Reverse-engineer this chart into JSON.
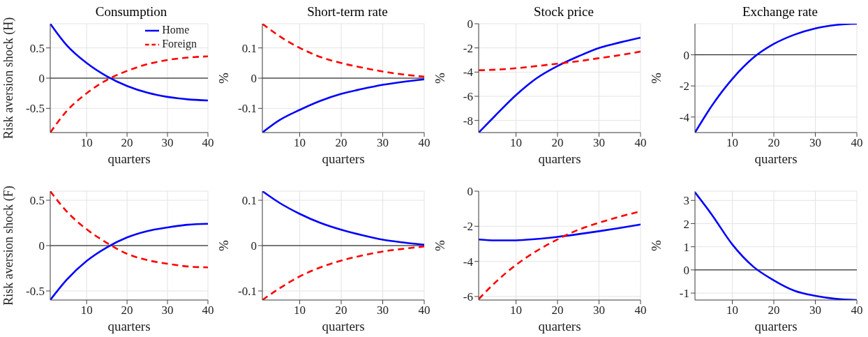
{
  "chart_data": [
    {
      "type": "line",
      "title": "Consumption",
      "xlabel": "quarters",
      "ylabel": "Risk aversion shock (H)",
      "x": [
        1,
        5,
        10,
        15,
        20,
        25,
        30,
        35,
        40
      ],
      "xlim": [
        1,
        40
      ],
      "xticks": [
        10,
        20,
        30,
        40
      ],
      "ylim": [
        -0.9,
        0.9
      ],
      "yticks": [
        -0.5,
        0,
        0.5
      ],
      "grid": true,
      "legend": "top right",
      "ref_lines": [
        {
          "axis": "y",
          "value": 0,
          "color": "#000000"
        }
      ],
      "series": [
        {
          "name": "Home",
          "color": "#0000ff",
          "line_style": "solid",
          "values": [
            0.9,
            0.55,
            0.25,
            0.03,
            -0.13,
            -0.24,
            -0.31,
            -0.35,
            -0.37
          ]
        },
        {
          "name": "Foreign",
          "color": "#ff0000",
          "line_style": "dashed",
          "values": [
            -0.9,
            -0.55,
            -0.25,
            -0.03,
            0.12,
            0.23,
            0.3,
            0.34,
            0.36
          ]
        }
      ]
    },
    {
      "type": "line",
      "title": "Short-term rate",
      "xlabel": "quarters",
      "ylabel": "%",
      "x": [
        1,
        5,
        10,
        15,
        20,
        25,
        30,
        35,
        40
      ],
      "xlim": [
        1,
        40
      ],
      "xticks": [
        10,
        20,
        30,
        40
      ],
      "ylim": [
        -0.18,
        0.18
      ],
      "yticks": [
        -0.1,
        0,
        0.1
      ],
      "grid": true,
      "ref_lines": [
        {
          "axis": "y",
          "value": 0,
          "color": "#000000"
        }
      ],
      "series": [
        {
          "color": "#0000ff",
          "line_style": "solid",
          "values": [
            -0.18,
            -0.14,
            -0.105,
            -0.075,
            -0.052,
            -0.036,
            -0.022,
            -0.012,
            -0.004
          ]
        },
        {
          "color": "#ff0000",
          "line_style": "dashed",
          "values": [
            0.18,
            0.14,
            0.1,
            0.07,
            0.05,
            0.035,
            0.022,
            0.012,
            0.005
          ]
        }
      ]
    },
    {
      "type": "line",
      "title": "Stock price",
      "xlabel": "quarters",
      "ylabel": "%",
      "x": [
        1,
        5,
        10,
        15,
        20,
        25,
        30,
        35,
        40
      ],
      "xlim": [
        1,
        40
      ],
      "xticks": [
        10,
        20,
        30,
        40
      ],
      "ylim": [
        -9,
        0
      ],
      "yticks": [
        -8,
        -6,
        -4,
        -2,
        0
      ],
      "grid": true,
      "series": [
        {
          "color": "#0000ff",
          "line_style": "solid",
          "values": [
            -9,
            -7.6,
            -5.9,
            -4.5,
            -3.5,
            -2.7,
            -2.0,
            -1.55,
            -1.15
          ]
        },
        {
          "color": "#ff0000",
          "line_style": "dashed",
          "values": [
            -3.85,
            -3.8,
            -3.68,
            -3.5,
            -3.3,
            -3.1,
            -2.85,
            -2.6,
            -2.3
          ]
        }
      ]
    },
    {
      "type": "line",
      "title": "Exchange rate",
      "xlabel": "quarters",
      "ylabel": "%",
      "x": [
        1,
        5,
        10,
        15,
        20,
        25,
        30,
        35,
        40
      ],
      "xlim": [
        1,
        40
      ],
      "xticks": [
        10,
        20,
        30,
        40
      ],
      "ylim": [
        -5,
        2
      ],
      "yticks": [
        -4,
        -2,
        0
      ],
      "grid": true,
      "ref_lines": [
        {
          "axis": "y",
          "value": 0,
          "color": "#000000"
        }
      ],
      "series": [
        {
          "color": "#0000ff",
          "line_style": "solid",
          "values": [
            -5,
            -3.3,
            -1.55,
            -0.2,
            0.7,
            1.3,
            1.7,
            1.92,
            2.0
          ]
        }
      ]
    },
    {
      "type": "line",
      "xlabel": "quarters",
      "ylabel": "Risk aversion shock (F)",
      "x": [
        1,
        5,
        10,
        15,
        20,
        25,
        30,
        35,
        40
      ],
      "xlim": [
        1,
        40
      ],
      "xticks": [
        10,
        20,
        30,
        40
      ],
      "ylim": [
        -0.6,
        0.6
      ],
      "yticks": [
        -0.5,
        0,
        0.5
      ],
      "grid": true,
      "ref_lines": [
        {
          "axis": "y",
          "value": 0,
          "color": "#000000"
        }
      ],
      "series": [
        {
          "color": "#0000ff",
          "line_style": "solid",
          "values": [
            -0.6,
            -0.38,
            -0.17,
            -0.02,
            0.09,
            0.16,
            0.2,
            0.23,
            0.24
          ]
        },
        {
          "color": "#ff0000",
          "line_style": "dashed",
          "values": [
            0.6,
            0.38,
            0.18,
            0.03,
            -0.09,
            -0.16,
            -0.2,
            -0.23,
            -0.24
          ]
        }
      ]
    },
    {
      "type": "line",
      "xlabel": "quarters",
      "ylabel": "%",
      "x": [
        1,
        5,
        10,
        15,
        20,
        25,
        30,
        35,
        40
      ],
      "xlim": [
        1,
        40
      ],
      "xticks": [
        10,
        20,
        30,
        40
      ],
      "ylim": [
        -0.12,
        0.12
      ],
      "yticks": [
        -0.1,
        0,
        0.1
      ],
      "grid": true,
      "ref_lines": [
        {
          "axis": "y",
          "value": 0,
          "color": "#000000"
        }
      ],
      "series": [
        {
          "color": "#0000ff",
          "line_style": "solid",
          "values": [
            0.12,
            0.095,
            0.07,
            0.05,
            0.035,
            0.023,
            0.013,
            0.007,
            0.002
          ]
        },
        {
          "color": "#ff0000",
          "line_style": "dashed",
          "values": [
            -0.12,
            -0.095,
            -0.068,
            -0.048,
            -0.033,
            -0.022,
            -0.013,
            -0.007,
            -0.002
          ]
        }
      ]
    },
    {
      "type": "line",
      "xlabel": "quarters",
      "ylabel": "%",
      "x": [
        1,
        5,
        10,
        15,
        20,
        25,
        30,
        35,
        40
      ],
      "xlim": [
        1,
        40
      ],
      "xticks": [
        10,
        20,
        30,
        40
      ],
      "ylim": [
        -6.2,
        0
      ],
      "yticks": [
        -6,
        -4,
        -2,
        0
      ],
      "grid": true,
      "series": [
        {
          "color": "#0000ff",
          "line_style": "solid",
          "values": [
            -2.75,
            -2.8,
            -2.8,
            -2.72,
            -2.6,
            -2.45,
            -2.28,
            -2.1,
            -1.9
          ]
        },
        {
          "color": "#ff0000",
          "line_style": "dashed",
          "values": [
            -6.15,
            -5.2,
            -4.2,
            -3.4,
            -2.75,
            -2.2,
            -1.8,
            -1.45,
            -1.15
          ]
        }
      ]
    },
    {
      "type": "line",
      "xlabel": "quarters",
      "ylabel": "%",
      "x": [
        1,
        5,
        10,
        15,
        20,
        25,
        30,
        35,
        40
      ],
      "xlim": [
        1,
        40
      ],
      "xticks": [
        10,
        20,
        30,
        40
      ],
      "ylim": [
        -1.3,
        3.4
      ],
      "yticks": [
        -1,
        0,
        1,
        2,
        3
      ],
      "grid": true,
      "ref_lines": [
        {
          "axis": "y",
          "value": 0,
          "color": "#000000"
        }
      ],
      "series": [
        {
          "color": "#0000ff",
          "line_style": "solid",
          "values": [
            3.35,
            2.4,
            1.1,
            0.15,
            -0.45,
            -0.9,
            -1.12,
            -1.25,
            -1.3
          ]
        }
      ]
    }
  ]
}
